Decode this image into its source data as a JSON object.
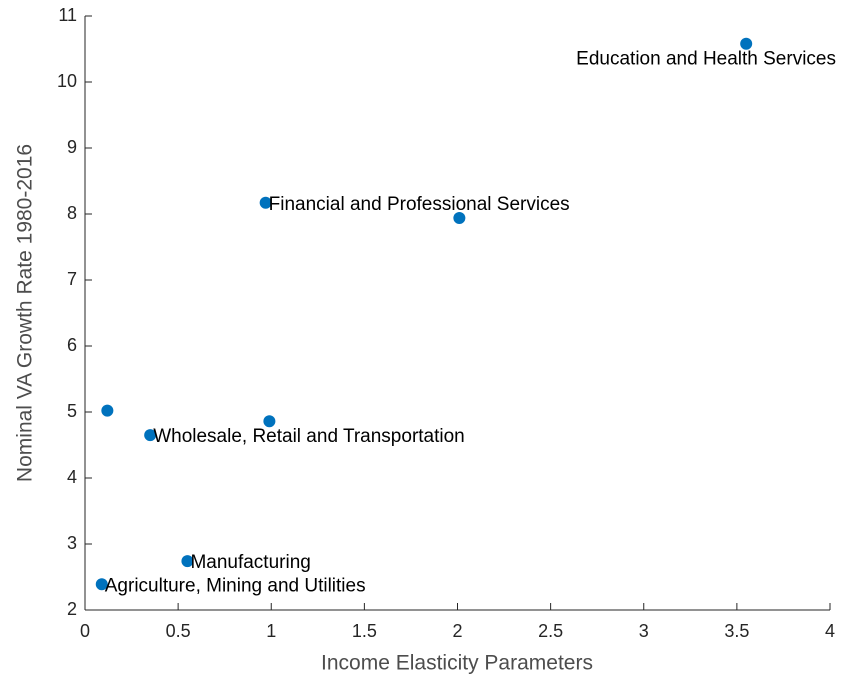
{
  "chart_data": {
    "type": "scatter",
    "x_label": "Income Elasticity Parameters",
    "y_label": "Nominal VA Growth Rate 1980-2016",
    "xlim": [
      0,
      4
    ],
    "ylim": [
      2,
      11
    ],
    "xticks": [
      0,
      0.5,
      1,
      1.5,
      2,
      2.5,
      3,
      3.5,
      4
    ],
    "yticks": [
      2,
      3,
      4,
      5,
      6,
      7,
      8,
      9,
      10,
      11
    ],
    "color": "#0072bd",
    "x": [
      0.09,
      0.55,
      0.12,
      0.35,
      0.99,
      0.97,
      2.01,
      3.55
    ],
    "values": [
      2.39,
      2.74,
      5.02,
      4.65,
      4.86,
      8.17,
      7.94,
      10.58
    ],
    "labels": [
      "Agriculture, Mining and Utilities",
      "Manufacturing",
      null,
      "Wholesale, Retail and Transportation",
      null,
      "Financial and Professional Services",
      null,
      "Education and Health Services"
    ]
  }
}
